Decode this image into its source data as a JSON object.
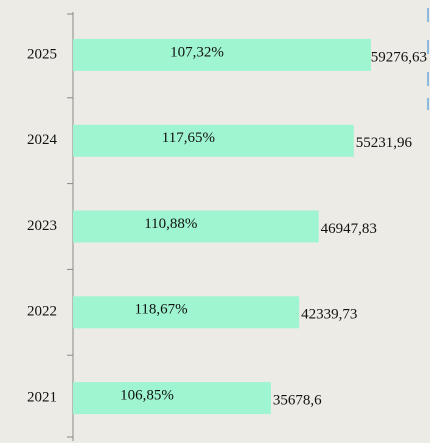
{
  "chart_data": {
    "type": "hbar",
    "categories": [
      "2025",
      "2024",
      "2023",
      "2022",
      "2021"
    ],
    "values": [
      59276.63,
      55231.96,
      46947.83,
      42339.73,
      35678.6
    ],
    "value_labels": [
      "59276,63",
      "55231,96",
      "46947,83",
      "42339,73",
      "35678,6"
    ],
    "annotations": [
      "107,32%",
      "117,65%",
      "110,88%",
      "118,67%",
      "106,85%"
    ],
    "color": "#9ff5cf",
    "xlim": [
      -11000,
      60000
    ]
  }
}
